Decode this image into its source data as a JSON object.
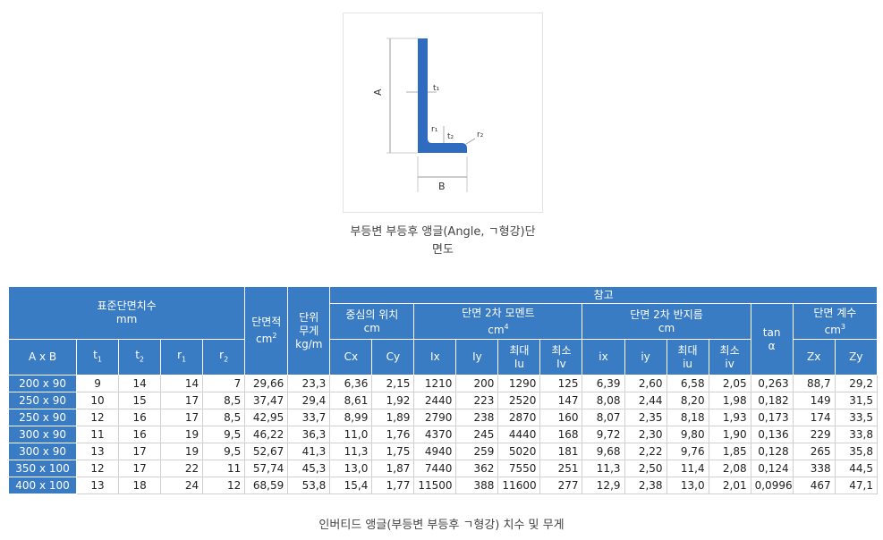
{
  "figure": {
    "labels": {
      "a": "A",
      "b": "B",
      "t1": "t₁",
      "t2": "t₂",
      "r1": "r₁",
      "r2": "r₂"
    },
    "caption_line1": "부등변 부등후 앵글(Angle, ㄱ형강)단",
    "caption_line2": "면도",
    "colors": {
      "profile": "#2f6cc0",
      "dim_lines": "#999999"
    }
  },
  "table": {
    "header": {
      "standard": "표준단면치수",
      "standard_unit": "mm",
      "area": "단면적",
      "area_unit_base": "cm",
      "area_unit_exp": "2",
      "weight_line1": "단위",
      "weight_line2": "무게",
      "weight_unit": "kg/m",
      "reference": "참고",
      "centroid": "중심의 위치",
      "centroid_unit": "cm",
      "moment": "단면 2차 모멘트",
      "moment_unit_base": "cm",
      "moment_unit_exp": "4",
      "radius": "단면 2차 반지름",
      "radius_unit": "cm",
      "tan_line1": "tan",
      "tan_line2": "α",
      "modulus": "단면 계수",
      "modulus_unit_base": "cm",
      "modulus_unit_exp": "3",
      "ab": "A x B",
      "t1": "t",
      "t1_sub": "1",
      "t2": "t",
      "t2_sub": "2",
      "r1": "r",
      "r1_sub": "1",
      "r2": "r",
      "r2_sub": "2",
      "cx": "Cx",
      "cy": "Cy",
      "ix_m": "Ix",
      "iy_m": "Iy",
      "max_label": "최대",
      "min_label": "최소",
      "iu_m": "Iu",
      "iv_m": "Iv",
      "ix_r": "ix",
      "iy_r": "iy",
      "iu_r": "iu",
      "iv_r": "iv",
      "zx": "Zx",
      "zy": "Zy"
    },
    "colors": {
      "header_bg": "#3a7cc4",
      "header_text": "#ffffff"
    },
    "rows": [
      [
        "200 x 90",
        "9",
        "14",
        "14",
        "7",
        "29,66",
        "23,3",
        "6,36",
        "2,15",
        "1210",
        "200",
        "1290",
        "125",
        "6,39",
        "2,60",
        "6,58",
        "2,05",
        "0,263",
        "88,7",
        "29,2"
      ],
      [
        "250 x 90",
        "10",
        "15",
        "17",
        "8,5",
        "37,47",
        "29,4",
        "8,61",
        "1,92",
        "2440",
        "223",
        "2520",
        "147",
        "8,08",
        "2,44",
        "8,20",
        "1,98",
        "0,182",
        "149",
        "31,5"
      ],
      [
        "250 x 90",
        "12",
        "16",
        "17",
        "8,5",
        "42,95",
        "33,7",
        "8,99",
        "1,89",
        "2790",
        "238",
        "2870",
        "160",
        "8,07",
        "2,35",
        "8,18",
        "1,93",
        "0,173",
        "174",
        "33,5"
      ],
      [
        "300 x 90",
        "11",
        "16",
        "19",
        "9,5",
        "46,22",
        "36,3",
        "11,0",
        "1,76",
        "4370",
        "245",
        "4440",
        "168",
        "9,72",
        "2,30",
        "9,80",
        "1,90",
        "0,136",
        "229",
        "33,8"
      ],
      [
        "300 x 90",
        "13",
        "17",
        "19",
        "9,5",
        "52,67",
        "41,3",
        "11,3",
        "1,75",
        "4940",
        "259",
        "5020",
        "181",
        "9,68",
        "2,22",
        "9,76",
        "1,85",
        "0,128",
        "265",
        "35,8"
      ],
      [
        "350 x 100",
        "12",
        "17",
        "22",
        "11",
        "57,74",
        "45,3",
        "13,0",
        "1,87",
        "7440",
        "362",
        "7550",
        "251",
        "11,3",
        "2,50",
        "11,4",
        "2,08",
        "0,124",
        "338",
        "44,5"
      ],
      [
        "400 x 100",
        "13",
        "18",
        "24",
        "12",
        "68,59",
        "53,8",
        "15,4",
        "1,77",
        "11500",
        "388",
        "11600",
        "277",
        "12,9",
        "2,38",
        "13,0",
        "2,01",
        "0,0996",
        "467",
        "47,1"
      ]
    ],
    "caption": "인버티드 앵글(부등변 부등후 ㄱ형강) 치수 및 무게"
  }
}
